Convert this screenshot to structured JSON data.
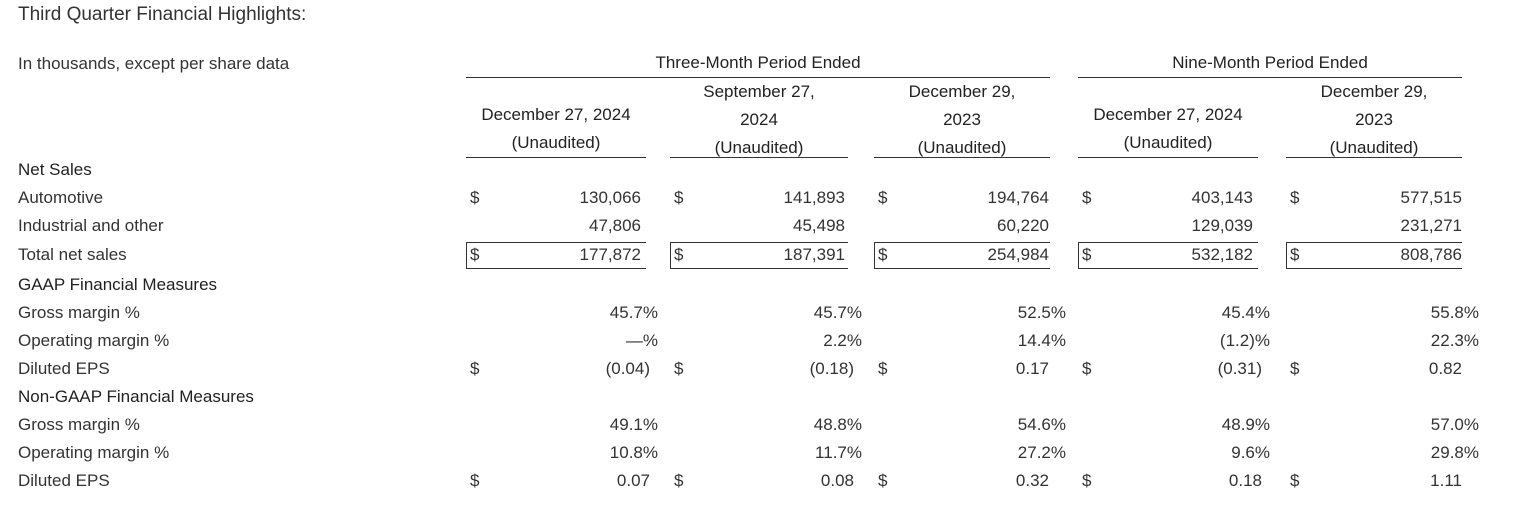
{
  "title": "Third Quarter Financial Highlights:",
  "subtitle": "In thousands, except per share data",
  "groups": {
    "three_month": "Three-Month Period Ended",
    "nine_month": "Nine-Month Period Ended"
  },
  "columns": [
    {
      "date": "December 27, 2024",
      "status": "(Unaudited)"
    },
    {
      "date_line1": "September 27,",
      "date_line2": "2024",
      "status": "(Unaudited)"
    },
    {
      "date_line1": "December 29,",
      "date_line2": "2023",
      "status": "(Unaudited)"
    },
    {
      "date": "December 27, 2024",
      "status": "(Unaudited)"
    },
    {
      "date_line1": "December 29,",
      "date_line2": "2023",
      "status": "(Unaudited)"
    }
  ],
  "currency_symbol": "$",
  "sections": {
    "net_sales": "Net Sales",
    "gaap": "GAAP Financial Measures",
    "non_gaap": "Non-GAAP Financial Measures"
  },
  "rows": {
    "automotive": {
      "label": "Automotive",
      "values": [
        "130,066",
        "141,893",
        "194,764",
        "403,143",
        "577,515"
      ]
    },
    "industrial": {
      "label": "Industrial and other",
      "values": [
        "47,806",
        "45,498",
        "60,220",
        "129,039",
        "231,271"
      ]
    },
    "total": {
      "label": "Total net sales",
      "values": [
        "177,872",
        "187,391",
        "254,984",
        "532,182",
        "808,786"
      ]
    },
    "gaap_gross": {
      "label": "Gross margin %",
      "values": [
        "45.7",
        "45.7",
        "52.5",
        "45.4",
        "55.8"
      ]
    },
    "gaap_operating": {
      "label": "Operating margin %",
      "values": [
        "—",
        "2.2",
        "14.4",
        "(1.2)",
        "22.3"
      ]
    },
    "gaap_eps": {
      "label": "Diluted EPS",
      "values": [
        "(0.04)",
        "(0.18)",
        "0.17",
        "(0.31)",
        "0.82"
      ]
    },
    "ng_gross": {
      "label": "Gross margin %",
      "values": [
        "49.1",
        "48.8",
        "54.6",
        "48.9",
        "57.0"
      ]
    },
    "ng_operating": {
      "label": "Operating margin %",
      "values": [
        "10.8",
        "11.7",
        "27.2",
        "9.6",
        "29.8"
      ]
    },
    "ng_eps": {
      "label": "Diluted EPS",
      "values": [
        "0.07",
        "0.08",
        "0.32",
        "0.18",
        "1.11"
      ]
    }
  },
  "percent_sign": "%"
}
